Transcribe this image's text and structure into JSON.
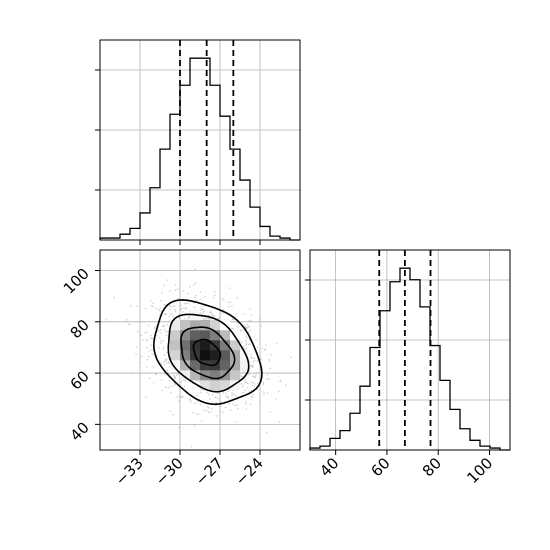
{
  "chart_data": {
    "type": "corner",
    "grid": true,
    "colors": {
      "ink": "#000000",
      "grid": "#b0b0b0",
      "scatter": "#b3b3b3"
    },
    "params": [
      {
        "xlim": [
          -36,
          -21
        ],
        "ticks": [
          -33,
          -30,
          -27,
          -24
        ],
        "tick_labels": [
          "−33",
          "−30",
          "−27",
          "−24"
        ],
        "quantiles": [
          -30.0,
          -28.0,
          -26.0
        ],
        "hist_bins": [
          -36.0,
          -35.25,
          -34.5,
          -33.75,
          -33.0,
          -32.25,
          -31.5,
          -30.75,
          -30.0,
          -29.25,
          -28.5,
          -27.75,
          -27.0,
          -26.25,
          -25.5,
          -24.75,
          -24.0,
          -23.25,
          -22.5,
          -21.75,
          -21.0
        ],
        "hist_counts": [
          1,
          1,
          3,
          6,
          14,
          27,
          47,
          65,
          80,
          94,
          94,
          80,
          64,
          47,
          31,
          17,
          7,
          2,
          1,
          0
        ]
      },
      {
        "xlim": [
          30,
          108
        ],
        "ticks": [
          40,
          60,
          80,
          100
        ],
        "tick_labels": [
          "40",
          "60",
          "80",
          "100"
        ],
        "quantiles": [
          57.0,
          67.0,
          77.0
        ],
        "hist_bins": [
          30.0,
          33.9,
          37.8,
          41.7,
          45.6,
          49.5,
          53.4,
          57.3,
          61.2,
          65.1,
          69.0,
          72.9,
          76.8,
          80.7,
          84.6,
          88.5,
          92.4,
          96.3,
          100.2,
          104.1,
          108.0
        ],
        "hist_counts": [
          1,
          2,
          6,
          10,
          19,
          33,
          53,
          72,
          87,
          94,
          88,
          74,
          54,
          36,
          21,
          11,
          5,
          2,
          1,
          0
        ]
      }
    ],
    "joint": {
      "xlim": [
        -36,
        -21
      ],
      "ylim": [
        30,
        108
      ],
      "yticks": [
        40,
        60,
        80,
        100
      ],
      "ytick_labels": [
        "40",
        "60",
        "80",
        "100"
      ],
      "center": [
        -28.0,
        68.0
      ],
      "spread": [
        2.0,
        10.0
      ],
      "correlation": -0.3,
      "contour_levels": [
        0.118,
        0.393,
        0.675,
        0.865
      ]
    }
  }
}
